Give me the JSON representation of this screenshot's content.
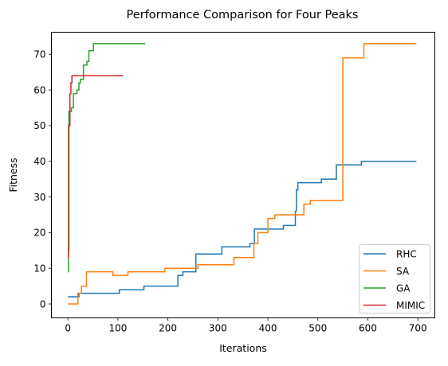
{
  "chart_data": {
    "type": "line",
    "title": "Performance Comparison for Four Peaks",
    "xlabel": "Iterations",
    "ylabel": "Fitness",
    "xlim": [
      -33,
      734
    ],
    "ylim": [
      -3.9,
      76.2
    ],
    "xticks": [
      0,
      100,
      200,
      300,
      400,
      500,
      600,
      700
    ],
    "yticks": [
      0,
      10,
      20,
      30,
      40,
      50,
      60,
      70
    ],
    "grid": false,
    "legend_position": "lower-right",
    "colors": {
      "RHC": "#1f77b4",
      "SA": "#ff7f0e",
      "GA": "#2ca02c",
      "MIMIC": "#d62728"
    },
    "series": [
      {
        "name": "RHC",
        "step": true,
        "points": [
          [
            0,
            2
          ],
          [
            20,
            2
          ],
          [
            22,
            3
          ],
          [
            100,
            3
          ],
          [
            103,
            4
          ],
          [
            150,
            4
          ],
          [
            152,
            5
          ],
          [
            218,
            5
          ],
          [
            220,
            8
          ],
          [
            230,
            9
          ],
          [
            255,
            9
          ],
          [
            256,
            14
          ],
          [
            307,
            14
          ],
          [
            308,
            16
          ],
          [
            362,
            16
          ],
          [
            364,
            17
          ],
          [
            372,
            17
          ],
          [
            373,
            21
          ],
          [
            430,
            21
          ],
          [
            431,
            22
          ],
          [
            454,
            22
          ],
          [
            455,
            26
          ],
          [
            457,
            32
          ],
          [
            460,
            34
          ],
          [
            505,
            34
          ],
          [
            507,
            35
          ],
          [
            535,
            35
          ],
          [
            537,
            39
          ],
          [
            585,
            39
          ],
          [
            587,
            40
          ],
          [
            697,
            40
          ]
        ]
      },
      {
        "name": "SA",
        "step": true,
        "points": [
          [
            0,
            0
          ],
          [
            18,
            0
          ],
          [
            20,
            3
          ],
          [
            27,
            5
          ],
          [
            35,
            5
          ],
          [
            37,
            9
          ],
          [
            88,
            9
          ],
          [
            90,
            8
          ],
          [
            110,
            8
          ],
          [
            120,
            9
          ],
          [
            192,
            9
          ],
          [
            194,
            10
          ],
          [
            258,
            10
          ],
          [
            260,
            11
          ],
          [
            330,
            11
          ],
          [
            332,
            13
          ],
          [
            370,
            13
          ],
          [
            372,
            17
          ],
          [
            380,
            20
          ],
          [
            398,
            20
          ],
          [
            400,
            24
          ],
          [
            412,
            24
          ],
          [
            414,
            25
          ],
          [
            470,
            25
          ],
          [
            472,
            28
          ],
          [
            485,
            29
          ],
          [
            548,
            29
          ],
          [
            550,
            69
          ],
          [
            590,
            69
          ],
          [
            592,
            73
          ],
          [
            697,
            73
          ]
        ]
      },
      {
        "name": "GA",
        "step": true,
        "points": [
          [
            0,
            9
          ],
          [
            1,
            50
          ],
          [
            2,
            54
          ],
          [
            7,
            55
          ],
          [
            11,
            59
          ],
          [
            18,
            60
          ],
          [
            22,
            62
          ],
          [
            25,
            63
          ],
          [
            31,
            67
          ],
          [
            38,
            68
          ],
          [
            42,
            71
          ],
          [
            51,
            73
          ],
          [
            155,
            73
          ]
        ]
      },
      {
        "name": "MIMIC",
        "step": true,
        "points": [
          [
            0,
            13
          ],
          [
            1,
            15
          ],
          [
            2,
            50
          ],
          [
            4,
            59
          ],
          [
            6,
            62
          ],
          [
            8,
            64
          ],
          [
            110,
            64
          ]
        ]
      }
    ]
  }
}
